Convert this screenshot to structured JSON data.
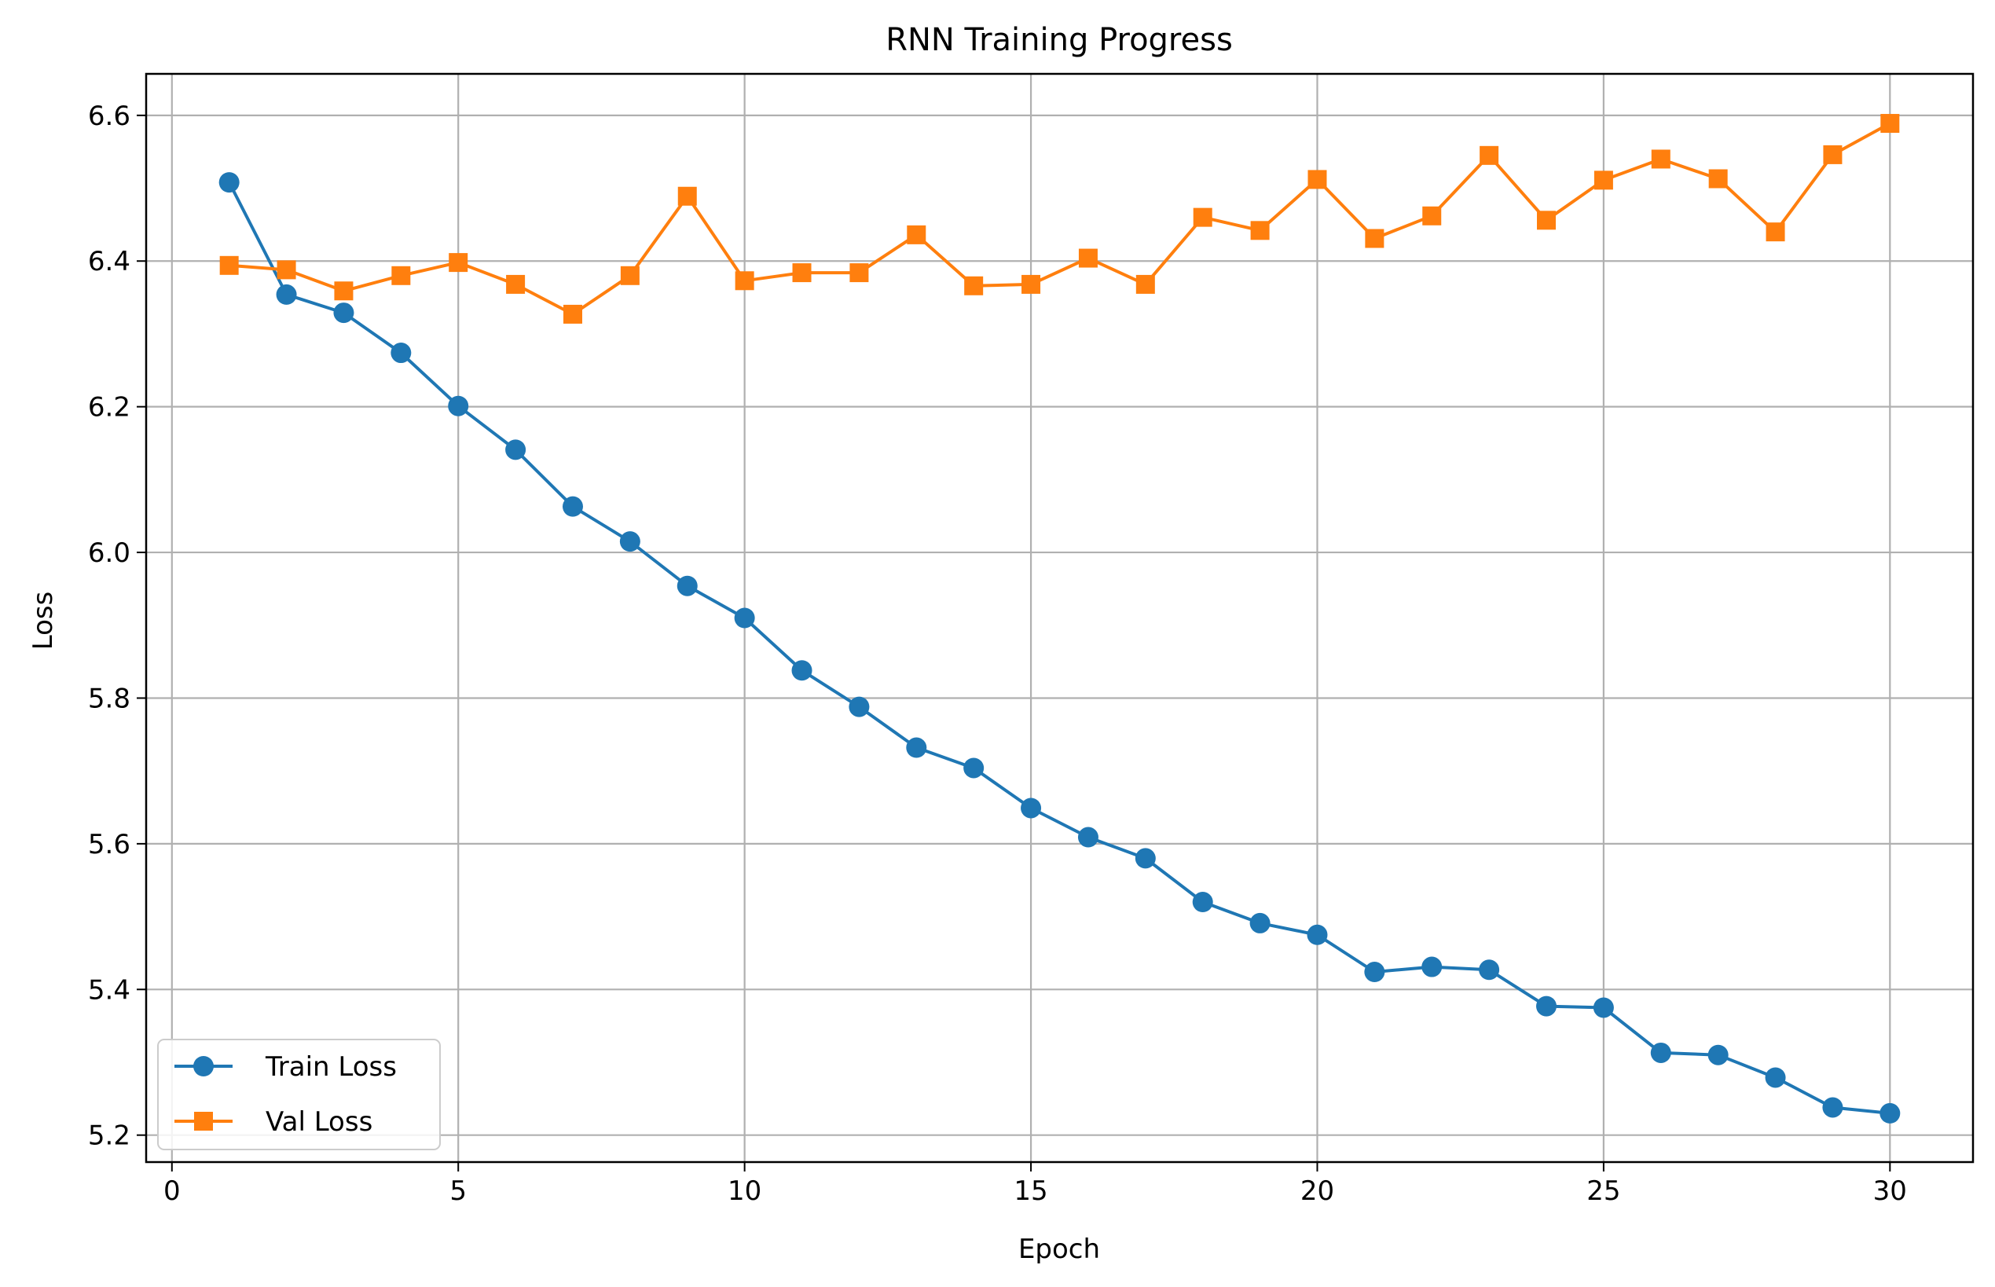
{
  "chart_data": {
    "type": "line",
    "title": "RNN Training Progress",
    "xlabel": "Epoch",
    "ylabel": "Loss",
    "xlim": [
      -0.45,
      31.45
    ],
    "ylim": [
      5.163,
      6.657
    ],
    "xticks": [
      0,
      5,
      10,
      15,
      20,
      25,
      30
    ],
    "yticks": [
      5.2,
      5.4,
      5.6,
      5.8,
      6.0,
      6.2,
      6.4,
      6.6
    ],
    "grid": true,
    "legend_position": "lower-left",
    "x": [
      1,
      2,
      3,
      4,
      5,
      6,
      7,
      8,
      9,
      10,
      11,
      12,
      13,
      14,
      15,
      16,
      17,
      18,
      19,
      20,
      21,
      22,
      23,
      24,
      25,
      26,
      27,
      28,
      29,
      30
    ],
    "series": [
      {
        "name": "Train Loss",
        "color": "#1f77b4",
        "marker": "circle",
        "values": [
          6.508,
          6.354,
          6.329,
          6.274,
          6.201,
          6.141,
          6.063,
          6.015,
          5.954,
          5.91,
          5.838,
          5.788,
          5.732,
          5.704,
          5.649,
          5.609,
          5.58,
          5.52,
          5.491,
          5.475,
          5.424,
          5.431,
          5.427,
          5.377,
          5.375,
          5.313,
          5.31,
          5.279,
          5.238,
          5.23
        ]
      },
      {
        "name": "Val Loss",
        "color": "#ff7f0e",
        "marker": "square",
        "values": [
          6.394,
          6.388,
          6.359,
          6.38,
          6.398,
          6.368,
          6.327,
          6.38,
          6.489,
          6.373,
          6.384,
          6.384,
          6.436,
          6.366,
          6.368,
          6.404,
          6.368,
          6.46,
          6.442,
          6.512,
          6.431,
          6.462,
          6.545,
          6.456,
          6.511,
          6.54,
          6.513,
          6.44,
          6.546,
          6.589
        ]
      }
    ]
  }
}
